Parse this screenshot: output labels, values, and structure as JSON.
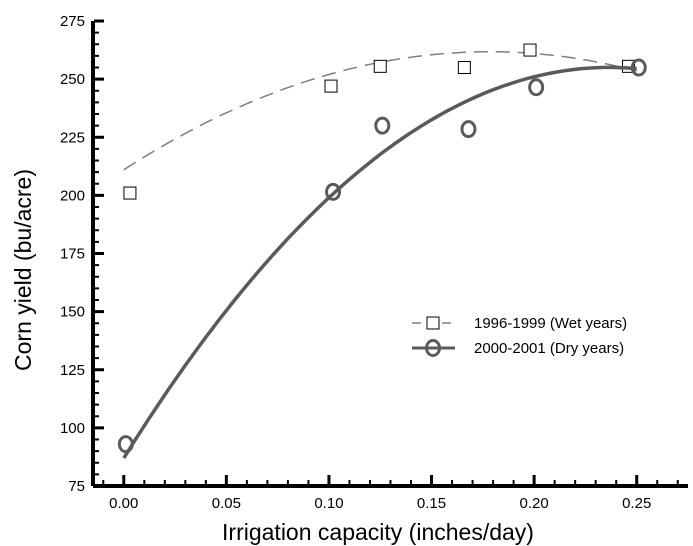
{
  "chart_data": {
    "type": "scatter",
    "title": "",
    "xlabel": "Irrigation capacity (inches/day)",
    "ylabel": "Corn yield (bu/acre)",
    "xlim": [
      -0.015,
      0.275
    ],
    "ylim": [
      75,
      275
    ],
    "xticks": [
      "0.00",
      "0.05",
      "0.10",
      "0.15",
      "0.20",
      "0.25"
    ],
    "xtick_values": [
      0.0,
      0.05,
      0.1,
      0.15,
      0.2,
      0.25
    ],
    "yticks": [
      "75",
      "100",
      "125",
      "150",
      "175",
      "200",
      "225",
      "250",
      "275"
    ],
    "ytick_values": [
      75,
      100,
      125,
      150,
      175,
      200,
      225,
      250,
      275
    ],
    "grid": false,
    "legend_position": "center-right",
    "series": [
      {
        "name": "1996-1999 (Wet years)",
        "marker": "square",
        "line": "dashed",
        "color": "#7f7f7f",
        "x": [
          0.003,
          0.101,
          0.125,
          0.166,
          0.198,
          0.246
        ],
        "y": [
          201,
          247,
          255.5,
          255,
          262.5,
          255.5
        ],
        "fit": {
          "type": "poly2",
          "a": -1600,
          "b": 570,
          "c": 211
        }
      },
      {
        "name": "2000-2001 (Dry years)",
        "marker": "circle",
        "line": "solid",
        "color": "#5a5a5a",
        "x": [
          0.001,
          0.102,
          0.126,
          0.168,
          0.201,
          0.251
        ],
        "y": [
          93,
          201.5,
          230,
          228.5,
          246.5,
          255
        ],
        "fit": {
          "type": "poly2",
          "a": -3000,
          "b": 1420,
          "c": 87
        }
      }
    ]
  }
}
